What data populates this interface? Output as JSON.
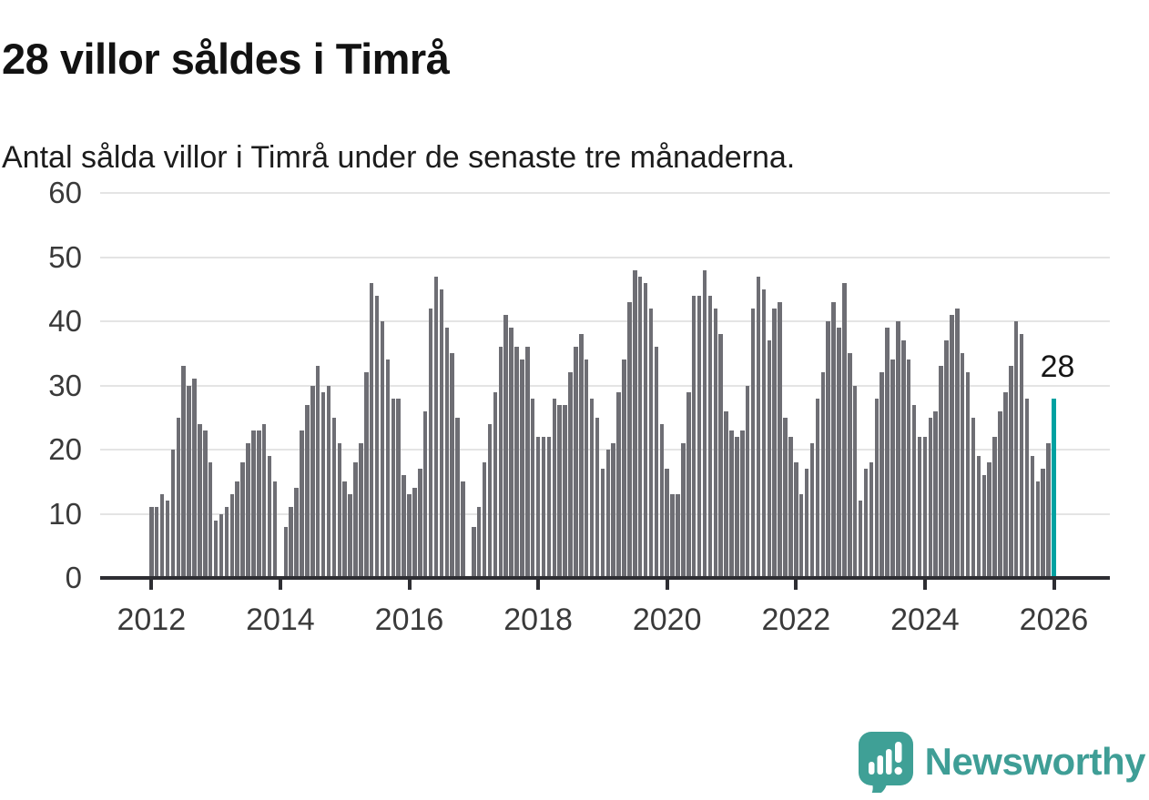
{
  "header": {
    "title": "28 villor såldes i Timrå",
    "subtitle": "Antal sålda villor i Timrå under de senaste tre månaderna."
  },
  "chart_data": {
    "type": "bar",
    "title": "28 villor såldes i Timrå",
    "subtitle": "Antal sålda villor i Timrå under de senaste tre månaderna.",
    "frequency": "monthly_rolling_3_month_count",
    "x_start": "2012-01",
    "x_end": "2026-01",
    "ylim": [
      0,
      60
    ],
    "y_ticks": [
      0,
      10,
      20,
      30,
      40,
      50,
      60
    ],
    "x_tick_years": [
      "2012",
      "2014",
      "2016",
      "2018",
      "2020",
      "2022",
      "2024",
      "2026"
    ],
    "grid": "horizontal",
    "bar_color": "#6e6e74",
    "highlight_color": "#00a1a1",
    "highlight_label": "28",
    "highlight_value": 28,
    "series_by_year": [
      {
        "year": 2012,
        "values": [
          11,
          11,
          13,
          12,
          20,
          25,
          33,
          30,
          31,
          24,
          23,
          18
        ]
      },
      {
        "year": 2013,
        "values": [
          9,
          10,
          11,
          13,
          15,
          18,
          21,
          23,
          23,
          24,
          19,
          15
        ]
      },
      {
        "year": 2014,
        "values": [
          0,
          8,
          11,
          14,
          23,
          27,
          30,
          33,
          29,
          30,
          25,
          21
        ]
      },
      {
        "year": 2015,
        "values": [
          15,
          13,
          18,
          21,
          32,
          46,
          44,
          40,
          34,
          28,
          28,
          16
        ]
      },
      {
        "year": 2016,
        "values": [
          13,
          14,
          17,
          26,
          42,
          47,
          45,
          39,
          35,
          25,
          15,
          0
        ]
      },
      {
        "year": 2017,
        "values": [
          8,
          11,
          18,
          24,
          29,
          36,
          41,
          39,
          36,
          34,
          36,
          28
        ]
      },
      {
        "year": 2018,
        "values": [
          22,
          22,
          22,
          28,
          27,
          27,
          32,
          36,
          38,
          34,
          28,
          25
        ]
      },
      {
        "year": 2019,
        "values": [
          17,
          20,
          21,
          29,
          34,
          43,
          48,
          47,
          46,
          42,
          36,
          24
        ]
      },
      {
        "year": 2020,
        "values": [
          17,
          13,
          13,
          21,
          29,
          44,
          44,
          48,
          44,
          42,
          38,
          26
        ]
      },
      {
        "year": 2021,
        "values": [
          23,
          22,
          23,
          30,
          42,
          47,
          45,
          37,
          42,
          43,
          25,
          22
        ]
      },
      {
        "year": 2022,
        "values": [
          18,
          13,
          17,
          21,
          28,
          32,
          40,
          43,
          39,
          46,
          35,
          30
        ]
      },
      {
        "year": 2023,
        "values": [
          12,
          17,
          18,
          28,
          32,
          39,
          34,
          40,
          37,
          34,
          27,
          22
        ]
      },
      {
        "year": 2024,
        "values": [
          22,
          25,
          26,
          33,
          37,
          41,
          42,
          35,
          32,
          25,
          19,
          16
        ]
      },
      {
        "year": 2025,
        "values": [
          18,
          22,
          26,
          29,
          33,
          40,
          38,
          28,
          19,
          15,
          17,
          21
        ]
      },
      {
        "year": 2026,
        "values": [
          28
        ]
      }
    ]
  },
  "footer": {
    "brand": "Newsworthy"
  }
}
